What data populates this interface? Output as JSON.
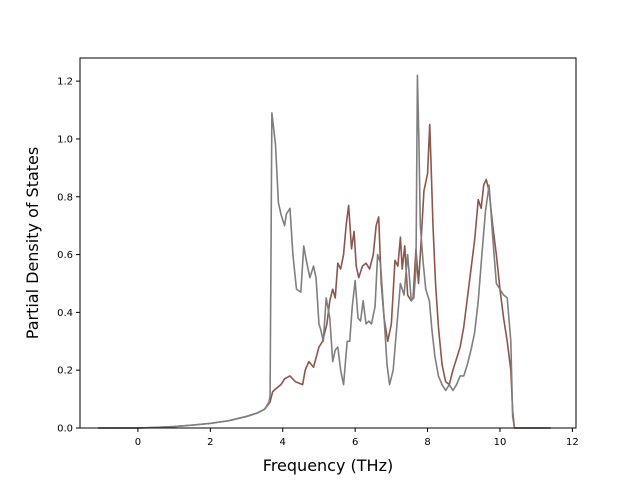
{
  "chart_data": {
    "type": "line",
    "title": "",
    "xlabel": "Frequency (THz)",
    "ylabel": "Partial Density of States",
    "xlim": [
      -1.6,
      12.1
    ],
    "ylim": [
      0.0,
      1.28
    ],
    "xticks": [
      0,
      2,
      4,
      6,
      8,
      10,
      12
    ],
    "yticks": [
      0.0,
      0.2,
      0.4,
      0.6,
      0.8,
      1.0,
      1.2
    ],
    "xtick_labels": [
      "0",
      "2",
      "4",
      "6",
      "8",
      "10",
      "12"
    ],
    "ytick_labels": [
      "0.0",
      "0.2",
      "0.4",
      "0.6",
      "0.8",
      "1.0",
      "1.2"
    ],
    "grid": false,
    "legend": "none",
    "series": [
      {
        "color": "#8c564b",
        "x": [
          -1.1,
          0.0,
          0.5,
          1.0,
          1.5,
          2.0,
          2.5,
          3.0,
          3.3,
          3.5,
          3.65,
          3.72,
          3.8,
          3.95,
          4.05,
          4.2,
          4.35,
          4.55,
          4.62,
          4.72,
          4.85,
          5.0,
          5.1,
          5.22,
          5.3,
          5.38,
          5.45,
          5.52,
          5.6,
          5.68,
          5.75,
          5.82,
          5.9,
          5.97,
          6.03,
          6.1,
          6.2,
          6.3,
          6.4,
          6.5,
          6.58,
          6.65,
          6.72,
          6.8,
          6.9,
          7.0,
          7.1,
          7.18,
          7.25,
          7.3,
          7.37,
          7.45,
          7.55,
          7.6,
          7.68,
          7.75,
          7.8,
          7.9,
          8.0,
          8.06,
          8.1,
          8.15,
          8.22,
          8.3,
          8.4,
          8.5,
          8.6,
          8.7,
          8.8,
          8.9,
          9.0,
          9.1,
          9.2,
          9.3,
          9.4,
          9.48,
          9.55,
          9.62,
          9.7,
          9.8,
          9.9,
          10.0,
          10.1,
          10.2,
          10.3,
          10.35,
          10.4,
          10.5,
          11.0,
          11.4
        ],
        "y": [
          0.0,
          0.0,
          0.002,
          0.005,
          0.01,
          0.016,
          0.025,
          0.04,
          0.052,
          0.065,
          0.09,
          0.125,
          0.135,
          0.15,
          0.17,
          0.18,
          0.16,
          0.15,
          0.2,
          0.23,
          0.21,
          0.28,
          0.3,
          0.36,
          0.44,
          0.48,
          0.45,
          0.57,
          0.55,
          0.6,
          0.7,
          0.77,
          0.62,
          0.68,
          0.56,
          0.52,
          0.56,
          0.57,
          0.55,
          0.6,
          0.7,
          0.73,
          0.5,
          0.38,
          0.3,
          0.36,
          0.58,
          0.56,
          0.66,
          0.55,
          0.63,
          0.46,
          0.44,
          0.45,
          0.62,
          0.5,
          0.6,
          0.82,
          0.88,
          1.05,
          0.9,
          0.7,
          0.5,
          0.35,
          0.22,
          0.16,
          0.15,
          0.2,
          0.24,
          0.28,
          0.35,
          0.45,
          0.55,
          0.65,
          0.79,
          0.76,
          0.84,
          0.86,
          0.82,
          0.7,
          0.6,
          0.48,
          0.38,
          0.3,
          0.2,
          0.06,
          0.0,
          0.0,
          0.0,
          0.0
        ]
      },
      {
        "color": "#7f7f7f",
        "x": [
          -1.1,
          0.0,
          0.5,
          1.0,
          1.5,
          2.0,
          2.5,
          3.0,
          3.3,
          3.5,
          3.62,
          3.65,
          3.67,
          3.7,
          3.8,
          3.88,
          3.95,
          4.05,
          4.1,
          4.2,
          4.28,
          4.38,
          4.5,
          4.58,
          4.65,
          4.75,
          4.85,
          4.92,
          5.0,
          5.05,
          5.12,
          5.2,
          5.3,
          5.38,
          5.45,
          5.52,
          5.6,
          5.68,
          5.78,
          5.85,
          5.92,
          6.0,
          6.08,
          6.15,
          6.22,
          6.3,
          6.38,
          6.45,
          6.55,
          6.62,
          6.7,
          6.8,
          6.88,
          6.95,
          7.05,
          7.15,
          7.25,
          7.35,
          7.45,
          7.55,
          7.62,
          7.68,
          7.72,
          7.76,
          7.8,
          7.88,
          7.95,
          8.05,
          8.12,
          8.2,
          8.3,
          8.4,
          8.5,
          8.6,
          8.7,
          8.8,
          8.9,
          9.0,
          9.1,
          9.2,
          9.3,
          9.4,
          9.5,
          9.6,
          9.7,
          9.8,
          9.9,
          10.0,
          10.1,
          10.2,
          10.3,
          10.35,
          10.4,
          10.5,
          11.0,
          11.4
        ],
        "y": [
          0.0,
          0.0,
          0.002,
          0.005,
          0.01,
          0.016,
          0.025,
          0.04,
          0.052,
          0.065,
          0.09,
          0.11,
          0.5,
          1.09,
          0.98,
          0.78,
          0.74,
          0.7,
          0.74,
          0.76,
          0.6,
          0.48,
          0.47,
          0.63,
          0.58,
          0.52,
          0.56,
          0.52,
          0.36,
          0.34,
          0.3,
          0.45,
          0.38,
          0.23,
          0.27,
          0.28,
          0.2,
          0.15,
          0.3,
          0.3,
          0.42,
          0.51,
          0.38,
          0.37,
          0.44,
          0.36,
          0.37,
          0.36,
          0.42,
          0.6,
          0.57,
          0.38,
          0.22,
          0.15,
          0.2,
          0.35,
          0.5,
          0.46,
          0.6,
          0.44,
          0.45,
          0.55,
          1.22,
          1.0,
          0.7,
          0.57,
          0.48,
          0.44,
          0.34,
          0.25,
          0.18,
          0.15,
          0.13,
          0.15,
          0.13,
          0.15,
          0.18,
          0.18,
          0.22,
          0.27,
          0.33,
          0.44,
          0.6,
          0.75,
          0.84,
          0.66,
          0.5,
          0.48,
          0.46,
          0.45,
          0.3,
          0.04,
          0.0,
          0.0,
          0.0,
          0.0
        ]
      }
    ]
  }
}
